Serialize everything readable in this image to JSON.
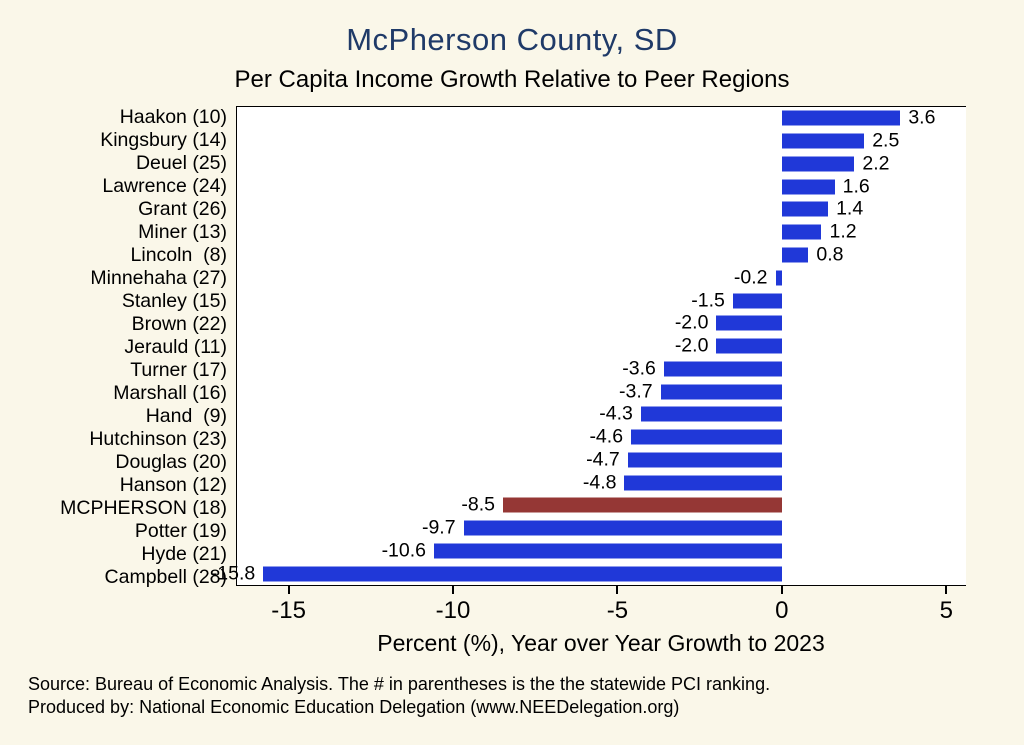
{
  "title": "McPherson County, SD",
  "subtitle": "Per Capita Income Growth Relative to Peer Regions",
  "xlabel": "Percent (%), Year over Year Growth to 2023",
  "footer": {
    "line1": "Source: Bureau of Economic Analysis. The # in parentheses is the the statewide PCI ranking.",
    "line2": "Produced by: National Economic Education Delegation (www.NEEDelegation.org)"
  },
  "colors": {
    "background": "#faf7e9",
    "plot_background": "#ffffff",
    "title_text": "#1f3a68",
    "bar": "#2038d8",
    "highlight_bar": "#953735",
    "axis": "#000000"
  },
  "chart_data": {
    "type": "bar",
    "orientation": "horizontal",
    "title": "McPherson County, SD",
    "subtitle": "Per Capita Income Growth Relative to Peer Regions",
    "xlabel": "Percent (%), Year over Year Growth to 2023",
    "categories": [
      "Haakon (10)",
      "Kingsbury (14)",
      "Deuel (25)",
      "Lawrence (24)",
      "Grant (26)",
      "Miner (13)",
      "Lincoln  (8)",
      "Minnehaha (27)",
      "Stanley (15)",
      "Brown (22)",
      "Jerauld (11)",
      "Turner (17)",
      "Marshall (16)",
      "Hand  (9)",
      "Hutchinson (23)",
      "Douglas (20)",
      "Hanson (12)",
      "MCPHERSON (18)",
      "Potter (19)",
      "Hyde (21)",
      "Campbell (28)"
    ],
    "values": [
      3.6,
      2.5,
      2.2,
      1.6,
      1.4,
      1.2,
      0.8,
      -0.2,
      -1.5,
      -2.0,
      -2.0,
      -3.6,
      -3.7,
      -4.3,
      -4.6,
      -4.7,
      -4.8,
      -8.5,
      -9.7,
      -10.6,
      -15.8
    ],
    "value_labels": [
      "3.6",
      "2.5",
      "2.2",
      "1.6",
      "1.4",
      "1.2",
      "0.8",
      "-0.2",
      "-1.5",
      "-2.0",
      "-2.0",
      "-3.6",
      "-3.7",
      "-4.3",
      "-4.6",
      "-4.7",
      "-4.8",
      "-8.5",
      "-9.7",
      "-10.6",
      "-15.8"
    ],
    "highlight_index": 17,
    "highlight_category": "MCPHERSON (18)",
    "x_ticks": [
      -15,
      -10,
      -5,
      0,
      5
    ],
    "xlim": [
      -16.6,
      5.6
    ],
    "grid": false,
    "legend": false
  }
}
